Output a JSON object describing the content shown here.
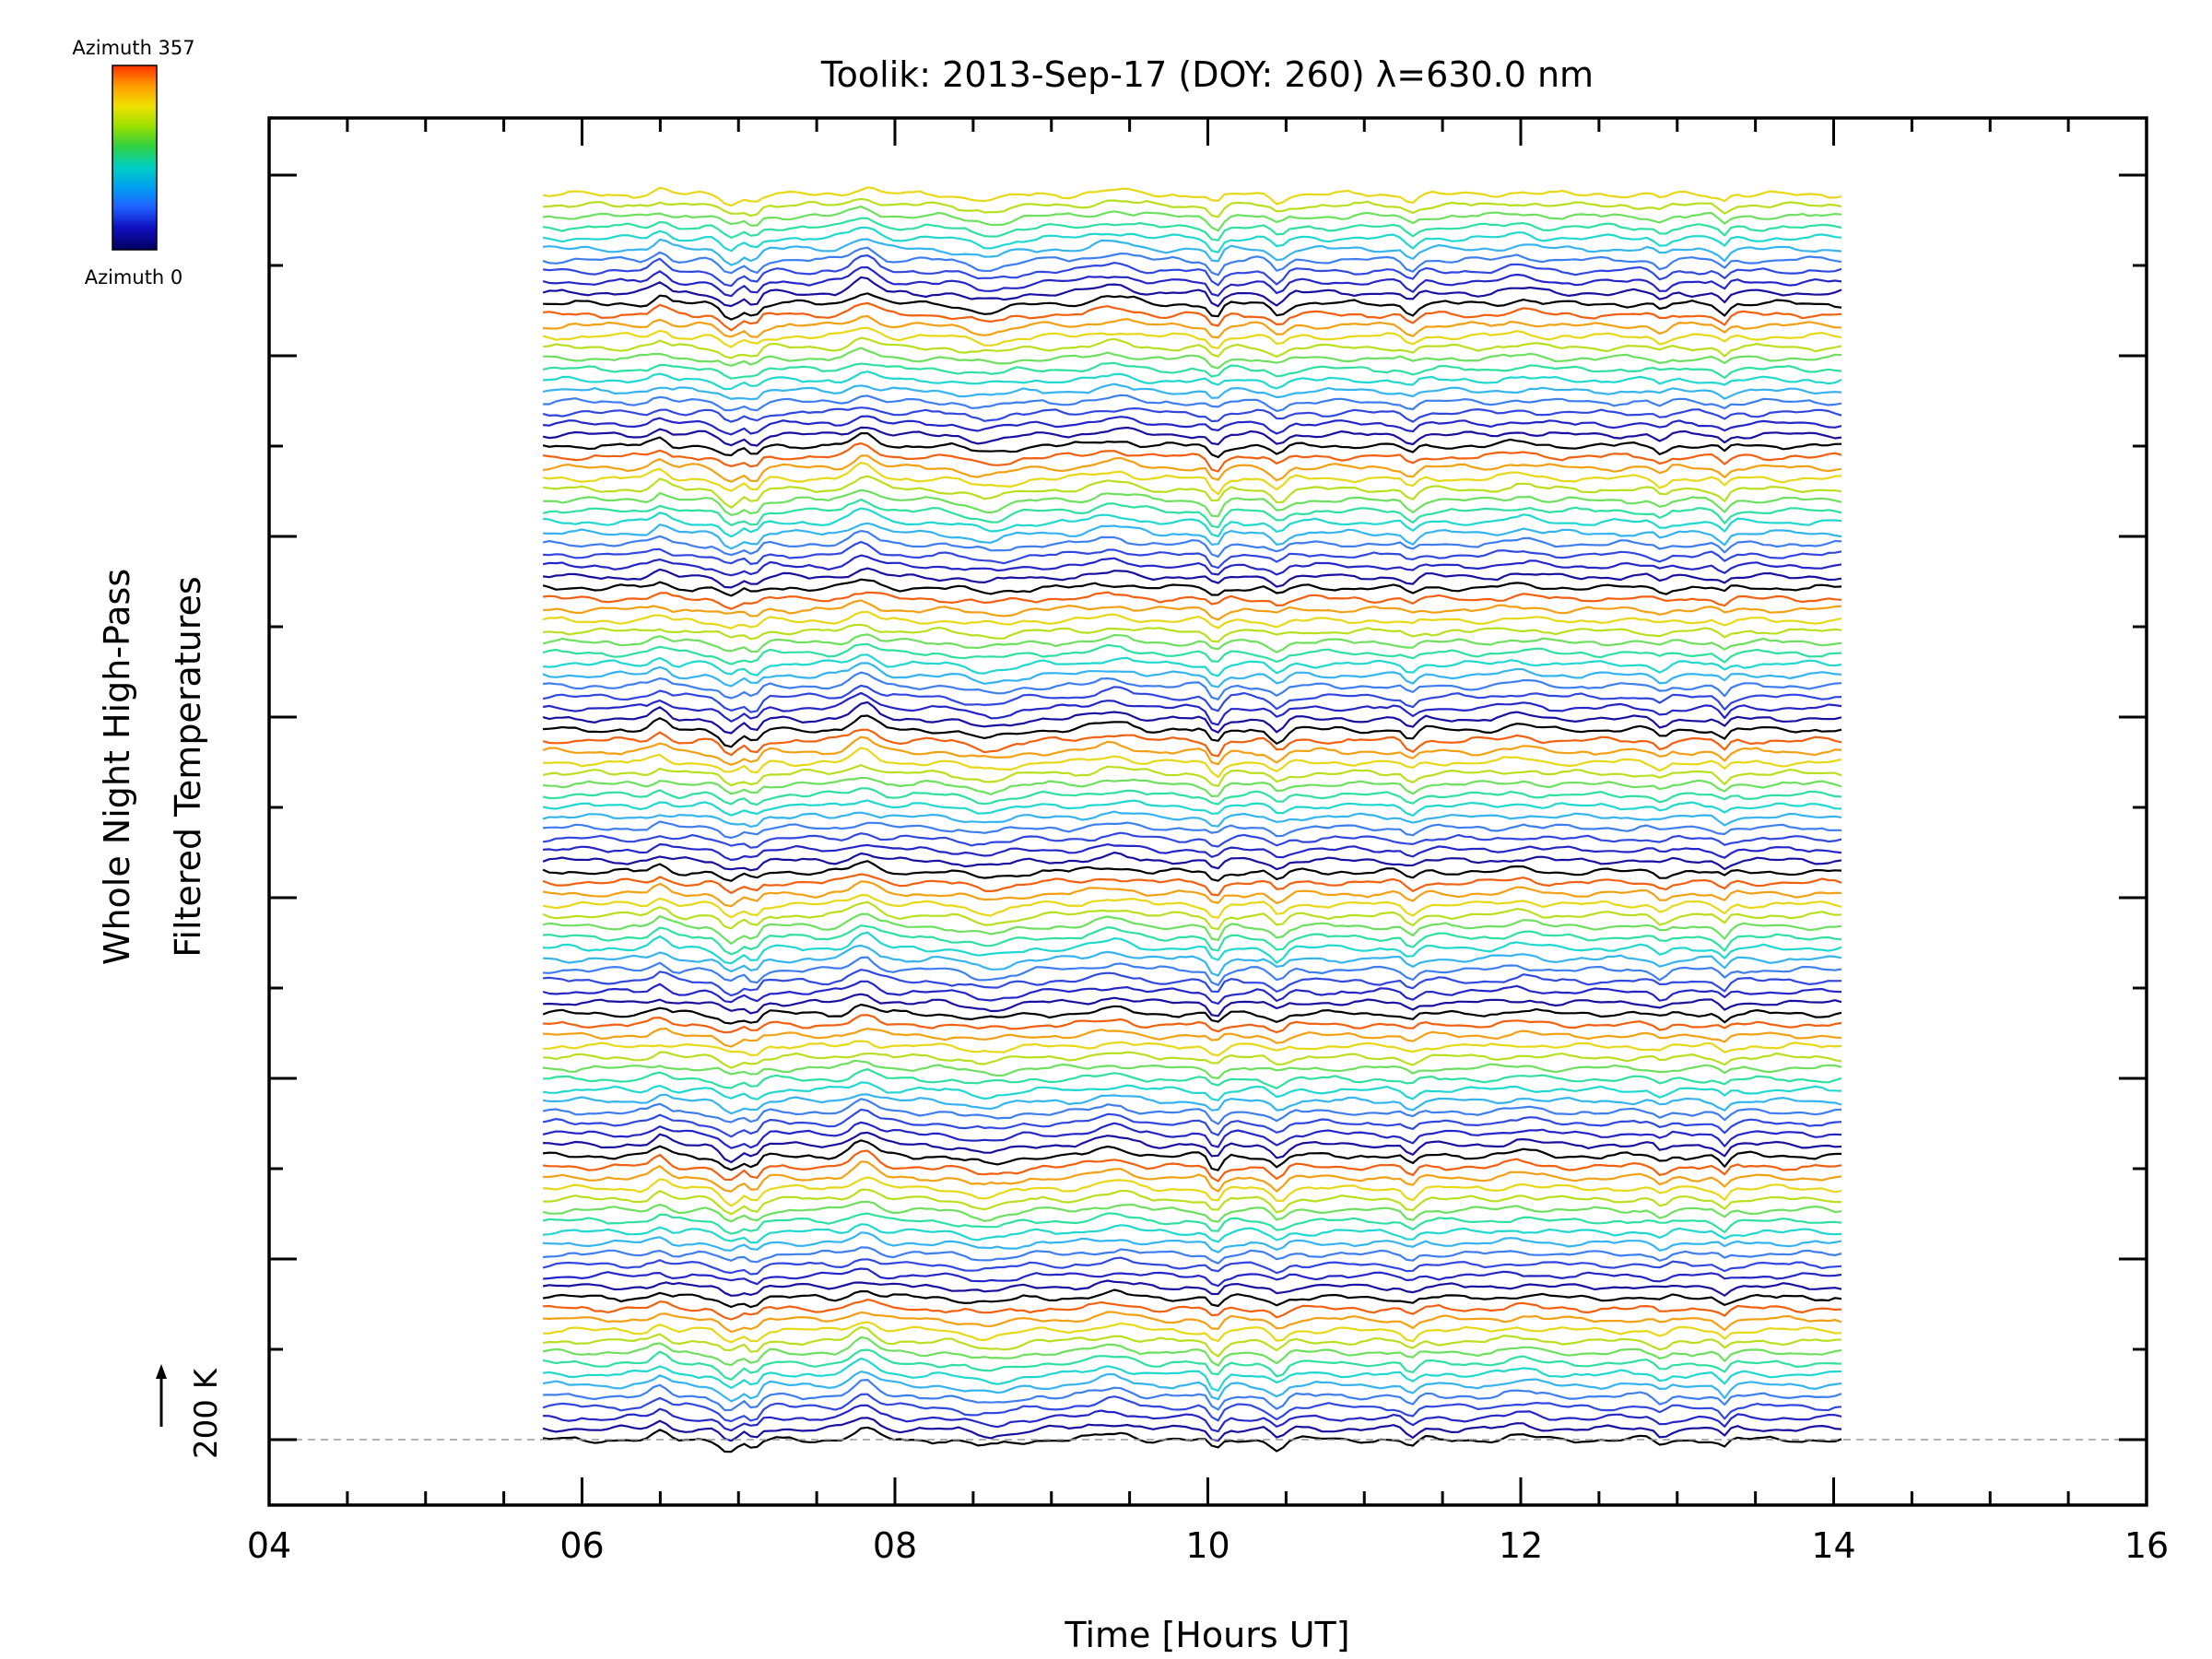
{
  "chart_data": {
    "type": "line",
    "title": "Toolik: 2013-Sep-17 (DOY: 260) λ=630.0 nm",
    "xlabel": "Time [Hours UT]",
    "ylabel_line1": "Whole Night High-Pass",
    "ylabel_line2": "Filtered Temperatures",
    "xlim": [
      4,
      16
    ],
    "x_ticks": [
      "04",
      "06",
      "08",
      "10",
      "12",
      "14",
      "16"
    ],
    "scale_bar_label": "200 K",
    "colorbar": {
      "top_label": "Azimuth 357",
      "bottom_label": "Azimuth 0",
      "colors": [
        "#ff3000",
        "#ff9c00",
        "#f0e000",
        "#9ae000",
        "#30d040",
        "#00d0c0",
        "#00a0f0",
        "#2060ff",
        "#1010c0",
        "#000060"
      ]
    },
    "time_range_hours": [
      5.75,
      14.05
    ],
    "baseline": "dashed gray line at the lowest trace",
    "trace_count": 115,
    "trace_colors": [
      "#000000",
      "#1a10a0",
      "#2626c8",
      "#3048e0",
      "#3f7ef0",
      "#35b4f0",
      "#20d8d0",
      "#30e0a0",
      "#6ee060",
      "#b8e020",
      "#e8d818",
      "#f4a014",
      "#f26010"
    ],
    "features": [
      {
        "hour": 6.5,
        "amp": 0.6,
        "width": 0.06
      },
      {
        "hour": 6.95,
        "amp": -1.0,
        "width": 0.08
      },
      {
        "hour": 7.1,
        "amp": -0.9,
        "width": 0.05
      },
      {
        "hour": 7.8,
        "amp": 0.9,
        "width": 0.1
      },
      {
        "hour": 8.6,
        "amp": -0.6,
        "width": 0.18
      },
      {
        "hour": 9.4,
        "amp": 0.5,
        "width": 0.15
      },
      {
        "hour": 10.05,
        "amp": -1.1,
        "width": 0.05
      },
      {
        "hour": 10.45,
        "amp": -0.8,
        "width": 0.06
      },
      {
        "hour": 11.3,
        "amp": -0.7,
        "width": 0.05
      },
      {
        "hour": 12.0,
        "amp": 0.3,
        "width": 0.12
      },
      {
        "hour": 12.9,
        "amp": -0.5,
        "width": 0.05
      },
      {
        "hour": 13.3,
        "amp": -0.7,
        "width": 0.04
      }
    ]
  }
}
